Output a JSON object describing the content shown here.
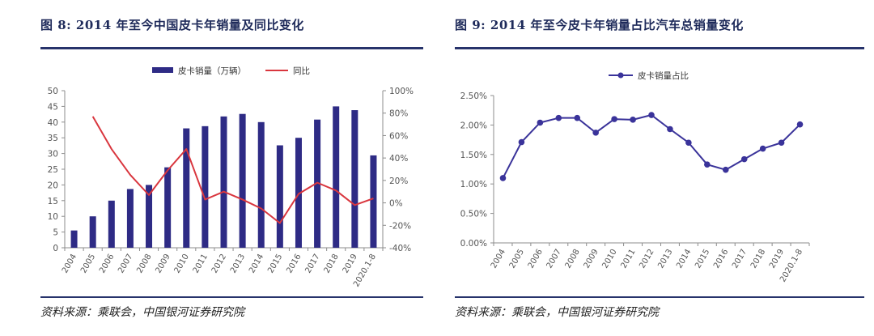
{
  "colors": {
    "bar": "#2e2b85",
    "line_red": "#d9363e",
    "line_purple": "#3a339a",
    "axis": "#8c8c8c",
    "text": "#555555",
    "title": "#1e2a5a",
    "rule": "#27336b"
  },
  "figure_left": {
    "title": "图 8:  2014 年至今中国皮卡年销量及同比变化",
    "source": "资料来源：乘联会，中国银河证券研究院"
  },
  "figure_right": {
    "title": "图 9:    2014 年至今皮卡年销量占比汽车总销量变化",
    "source": "资料来源：乘联会，中国银河证券研究院"
  },
  "chart_data": [
    {
      "type": "bar",
      "title": "图 8:  2014 年至今中国皮卡年销量及同比变化",
      "categories": [
        "2004",
        "2005",
        "2006",
        "2007",
        "2008",
        "2009",
        "2010",
        "2011",
        "2012",
        "2013",
        "2014",
        "2015",
        "2016",
        "2017",
        "2018",
        "2019",
        "2020.1-8"
      ],
      "series": [
        {
          "name": "皮卡销量（万辆）",
          "type": "bar",
          "axis": "left",
          "values": [
            5.5,
            10,
            15,
            18.7,
            20,
            25.6,
            38,
            38.7,
            41.8,
            42.6,
            40,
            32.6,
            35,
            40.8,
            45,
            43.8,
            29.4
          ]
        },
        {
          "name": "同比",
          "type": "line",
          "axis": "right",
          "values": [
            null,
            77,
            48,
            25,
            7,
            29,
            48,
            3,
            10,
            3,
            -5,
            -18,
            8,
            18,
            11,
            -2,
            4
          ]
        }
      ],
      "y_left": {
        "min": 0,
        "max": 50,
        "ticks": [
          "0",
          "5",
          "10",
          "15",
          "20",
          "25",
          "30",
          "35",
          "40",
          "45",
          "50"
        ]
      },
      "y_right": {
        "min": -40,
        "max": 100,
        "ticks": [
          "-40%",
          "-20%",
          "0%",
          "20%",
          "40%",
          "60%",
          "80%",
          "100%"
        ]
      },
      "legend": {
        "position": "top-center",
        "entries": [
          "皮卡销量（万辆）",
          "同比"
        ]
      },
      "grid": false
    },
    {
      "type": "line",
      "title": "图 9:    2014 年至今皮卡年销量占比汽车总销量变化",
      "categories": [
        "2004",
        "2005",
        "2006",
        "2007",
        "2008",
        "2009",
        "2010",
        "2011",
        "2012",
        "2013",
        "2014",
        "2015",
        "2016",
        "2017",
        "2018",
        "2019",
        "2020.1-8"
      ],
      "series": [
        {
          "name": "皮卡销量占比",
          "values": [
            1.1,
            1.71,
            2.04,
            2.12,
            2.12,
            1.87,
            2.1,
            2.09,
            2.17,
            1.93,
            1.7,
            1.33,
            1.24,
            1.42,
            1.6,
            1.7,
            2.01
          ]
        }
      ],
      "y": {
        "min": 0,
        "max": 2.5,
        "unit": "%",
        "ticks": [
          "0.00%",
          "0.50%",
          "1.00%",
          "1.50%",
          "2.00%",
          "2.50%"
        ]
      },
      "legend": {
        "position": "top-center",
        "entries": [
          "皮卡销量占比"
        ]
      },
      "grid": false
    }
  ]
}
